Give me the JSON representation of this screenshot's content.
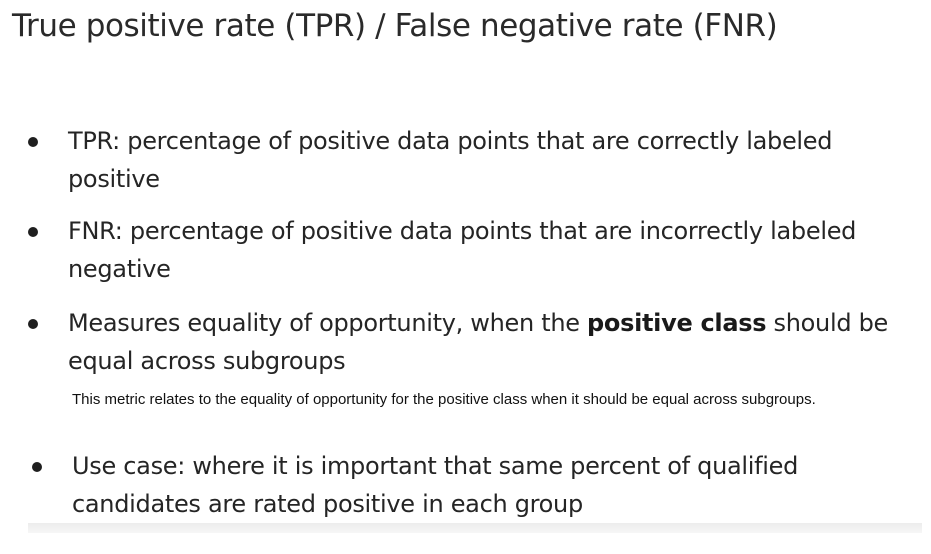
{
  "title": "True positive rate (TPR) / False negative rate (FNR)",
  "bullets": [
    {
      "text": "TPR: percentage of positive data points that are correctly labeled positive"
    },
    {
      "text": "FNR: percentage of positive data points that are incorrectly labeled negative"
    },
    {
      "before": "Measures equality of opportunity, when the ",
      "bold": "positive class",
      "after": " should be equal across subgroups"
    },
    {
      "text": "Use case: where it is important that same percent of qualified candidates are rated positive in each group"
    }
  ],
  "note": "This metric relates to the equality of opportunity for the positive class when it should be equal across subgroups."
}
